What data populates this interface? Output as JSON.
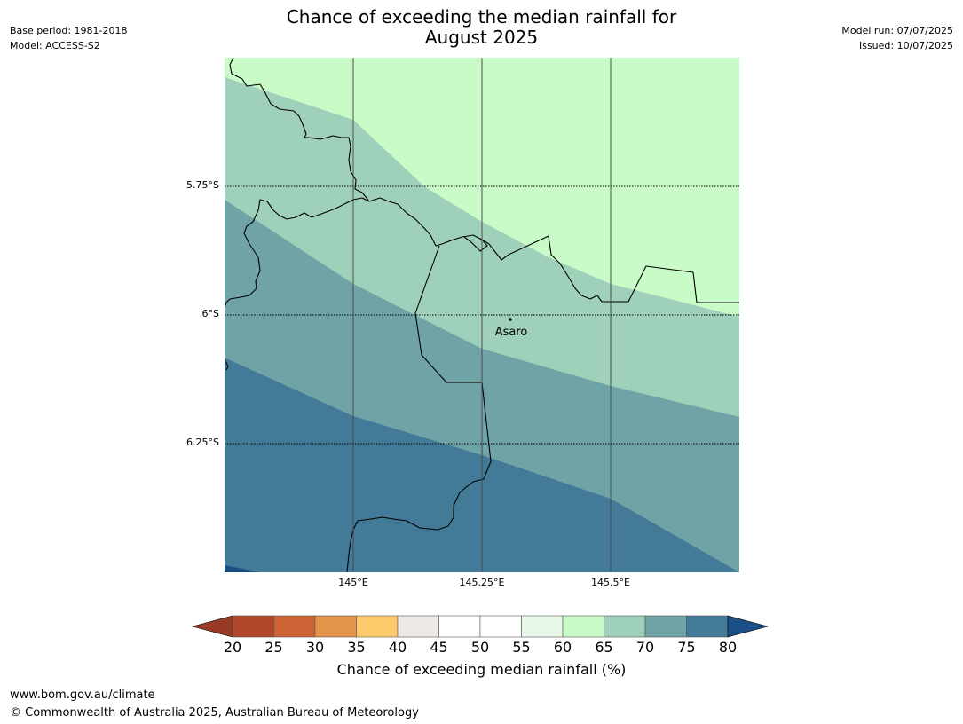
{
  "header": {
    "title_line1": "Chance of exceeding the median rainfall for",
    "title_line2": "August 2025",
    "base_period": "Base period: 1981-2018",
    "model": "Model: ACCESS-S2",
    "model_run": "Model run: 07/07/2025",
    "issued": "Issued: 10/07/2025"
  },
  "map": {
    "place_label": "Asaro",
    "lat_labels": [
      "5.75°S",
      "6°S",
      "6.25°S"
    ],
    "lon_labels": [
      "145°E",
      "145.25°E",
      "145.5°E"
    ]
  },
  "colorbar": {
    "label": "Chance of exceeding median rainfall (%)",
    "ticks": [
      "20",
      "25",
      "30",
      "35",
      "40",
      "45",
      "50",
      "55",
      "60",
      "65",
      "70",
      "75",
      "80"
    ],
    "colors": [
      "#b0472a",
      "#cd6234",
      "#e3944a",
      "#fdcb6b",
      "#ece9e6",
      "#ffffff",
      "#ffffff",
      "#e9f7e9",
      "#c8fbc8",
      "#9fd0b9",
      "#6fa3a6",
      "#427a98"
    ],
    "under_color": "#983a26",
    "over_color": "#1a4f85"
  },
  "footer": {
    "url": "www.bom.gov.au/climate",
    "copyright": "© Commonwealth of Australia 2025, Australian Bureau of Meteorology"
  }
}
